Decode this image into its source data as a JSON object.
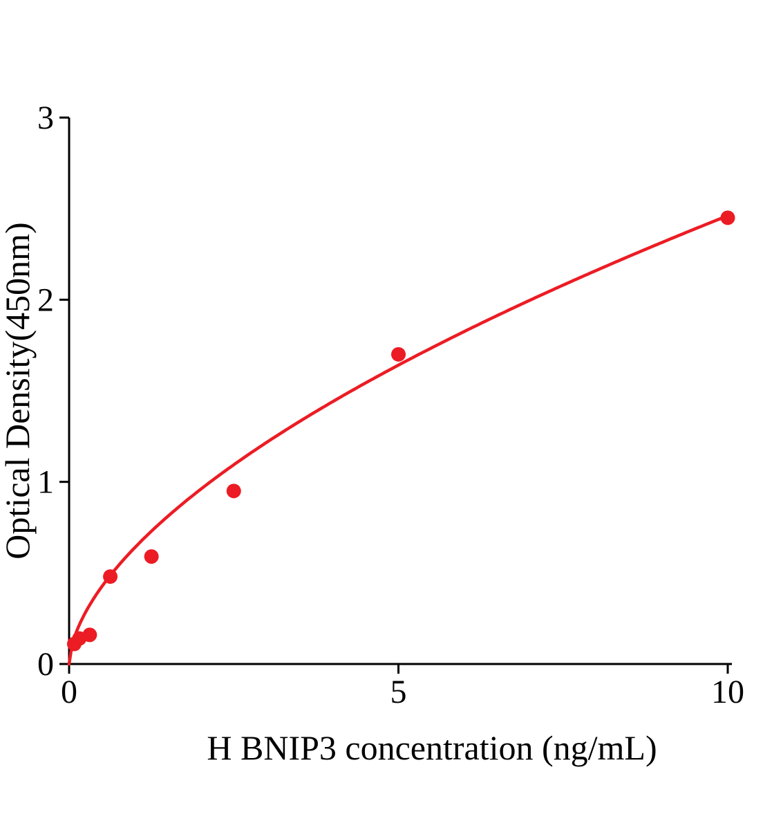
{
  "chart_data": {
    "type": "scatter",
    "title": "",
    "xlabel": "H BNIP3 concentration (ng/mL)",
    "ylabel": "Optical Density(450nm)",
    "xlim": [
      0,
      10
    ],
    "ylim": [
      0,
      3
    ],
    "xticks": [
      0,
      5,
      10
    ],
    "yticks": [
      0,
      1,
      2,
      3
    ],
    "grid": false,
    "legend": "none",
    "points": [
      {
        "x": 0.078,
        "y": 0.11
      },
      {
        "x": 0.156,
        "y": 0.14
      },
      {
        "x": 0.313,
        "y": 0.16
      },
      {
        "x": 0.625,
        "y": 0.48
      },
      {
        "x": 1.25,
        "y": 0.59
      },
      {
        "x": 2.5,
        "y": 0.95
      },
      {
        "x": 5,
        "y": 1.7
      },
      {
        "x": 10,
        "y": 2.45
      }
    ],
    "fit_curve": {
      "model": "power",
      "a": 0.64,
      "b": 0.585
    },
    "colors": {
      "curve": "#ec1c24",
      "point": "#ec1c24",
      "axis": "#000000",
      "text": "#000000",
      "background": "#ffffff"
    }
  }
}
